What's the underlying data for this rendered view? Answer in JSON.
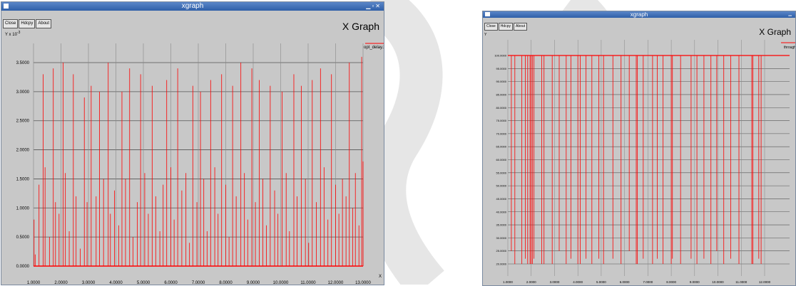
{
  "left_window": {
    "title": "xgraph",
    "buttons": [
      "Close",
      "Hdcpy",
      "About"
    ],
    "graph_title": "X Graph",
    "y_axis_label": "Y x 10",
    "y_axis_exponent": "-3",
    "legend": "opt_delay.xg",
    "x_axis_label": "X",
    "chart_data": {
      "type": "line",
      "xlim": [
        1.0,
        13.0
      ],
      "ylim": [
        0.0,
        3.5
      ],
      "y_ticks": [
        "0.0000",
        "0.5000",
        "1.0000",
        "1.5000",
        "2.0000",
        "2.5000",
        "3.0000",
        "3.5000"
      ],
      "x_ticks": [
        "1.0000",
        "2.0000",
        "3.0000",
        "4.0000",
        "5.0000",
        "6.0000",
        "7.0000",
        "8.0000",
        "9.0000",
        "10.0000",
        "11.0000",
        "12.0000",
        "13.0000"
      ],
      "series": [
        {
          "name": "opt_delay.xg",
          "color": "#ff0000",
          "spikes": [
            [
              1.02,
              0.8
            ],
            [
              1.06,
              0.2
            ],
            [
              1.2,
              1.4
            ],
            [
              1.35,
              3.3
            ],
            [
              1.42,
              1.7
            ],
            [
              1.58,
              0.5
            ],
            [
              1.72,
              3.4
            ],
            [
              1.8,
              1.1
            ],
            [
              1.93,
              0.9
            ],
            [
              2.08,
              3.5
            ],
            [
              2.16,
              1.6
            ],
            [
              2.3,
              0.6
            ],
            [
              2.45,
              3.3
            ],
            [
              2.55,
              1.2
            ],
            [
              2.7,
              0.3
            ],
            [
              2.85,
              2.9
            ],
            [
              2.95,
              1.1
            ],
            [
              3.1,
              3.1
            ],
            [
              3.28,
              1.2
            ],
            [
              3.4,
              3.0
            ],
            [
              3.55,
              1.5
            ],
            [
              3.72,
              3.5
            ],
            [
              3.8,
              0.9
            ],
            [
              3.95,
              1.3
            ],
            [
              4.1,
              0.7
            ],
            [
              4.22,
              3.0
            ],
            [
              4.35,
              1.5
            ],
            [
              4.5,
              3.4
            ],
            [
              4.62,
              0.5
            ],
            [
              4.78,
              1.1
            ],
            [
              4.9,
              3.3
            ],
            [
              5.05,
              1.6
            ],
            [
              5.18,
              0.9
            ],
            [
              5.32,
              3.1
            ],
            [
              5.45,
              1.2
            ],
            [
              5.6,
              0.6
            ],
            [
              5.72,
              1.4
            ],
            [
              5.85,
              3.2
            ],
            [
              6.0,
              1.7
            ],
            [
              6.12,
              0.8
            ],
            [
              6.25,
              3.4
            ],
            [
              6.4,
              1.3
            ],
            [
              6.55,
              1.6
            ],
            [
              6.68,
              0.4
            ],
            [
              6.8,
              3.1
            ],
            [
              6.95,
              1.1
            ],
            [
              7.08,
              3.0
            ],
            [
              7.2,
              1.5
            ],
            [
              7.32,
              0.6
            ],
            [
              7.45,
              3.2
            ],
            [
              7.6,
              1.7
            ],
            [
              7.72,
              0.9
            ],
            [
              7.85,
              3.3
            ],
            [
              8.0,
              1.4
            ],
            [
              8.12,
              0.5
            ],
            [
              8.25,
              3.1
            ],
            [
              8.38,
              1.2
            ],
            [
              8.55,
              3.5
            ],
            [
              8.68,
              1.6
            ],
            [
              8.8,
              0.8
            ],
            [
              8.95,
              3.4
            ],
            [
              9.08,
              1.1
            ],
            [
              9.22,
              3.2
            ],
            [
              9.35,
              1.5
            ],
            [
              9.48,
              0.7
            ],
            [
              9.62,
              3.1
            ],
            [
              9.78,
              1.3
            ],
            [
              9.9,
              0.9
            ],
            [
              10.05,
              3.0
            ],
            [
              10.2,
              1.6
            ],
            [
              10.32,
              0.6
            ],
            [
              10.48,
              3.3
            ],
            [
              10.6,
              1.2
            ],
            [
              10.75,
              3.1
            ],
            [
              10.9,
              1.5
            ],
            [
              11.02,
              0.4
            ],
            [
              11.15,
              3.2
            ],
            [
              11.3,
              1.1
            ],
            [
              11.45,
              3.4
            ],
            [
              11.58,
              1.7
            ],
            [
              11.72,
              0.8
            ],
            [
              11.85,
              3.3
            ],
            [
              12.0,
              1.4
            ],
            [
              12.12,
              0.9
            ],
            [
              12.25,
              1.5
            ],
            [
              12.38,
              1.2
            ],
            [
              12.5,
              3.5
            ],
            [
              12.62,
              1.0
            ],
            [
              12.72,
              1.6
            ],
            [
              12.85,
              0.7
            ],
            [
              12.95,
              3.6
            ],
            [
              13.0,
              1.8
            ]
          ]
        }
      ]
    }
  },
  "right_window": {
    "title": "xgraph",
    "buttons": [
      "Close",
      "Hdcpy",
      "About"
    ],
    "graph_title": "X Graph",
    "y_axis_label": "Y",
    "legend": "throughput",
    "chart_data": {
      "type": "line",
      "xlim": [
        1.0,
        12.0
      ],
      "ylim": [
        20.0,
        100.0
      ],
      "y_ticks": [
        "20.0000",
        "25.0000",
        "30.0000",
        "35.0000",
        "40.0000",
        "45.0000",
        "50.0000",
        "55.0000",
        "60.0000",
        "65.0000",
        "70.0000",
        "75.0000",
        "80.0000",
        "85.0000",
        "90.0000",
        "95.0000",
        "100.0000"
      ],
      "x_ticks": [
        "1.0000",
        "2.0000",
        "3.0000",
        "4.0000",
        "5.0000",
        "6.0000",
        "7.0000",
        "8.0000",
        "9.0000",
        "10.0000",
        "11.0000",
        "12.0000"
      ],
      "series": [
        {
          "name": "throughput",
          "color": "#ff0000",
          "baseline": 100.0,
          "dips": [
            [
              1.15,
              25
            ],
            [
              1.3,
              20
            ],
            [
              1.6,
              20
            ],
            [
              1.75,
              22
            ],
            [
              1.85,
              20
            ],
            [
              1.95,
              20
            ],
            [
              2.0,
              20
            ],
            [
              2.05,
              20
            ],
            [
              2.12,
              22
            ],
            [
              2.45,
              20
            ],
            [
              2.55,
              20
            ],
            [
              2.9,
              20
            ],
            [
              3.2,
              25
            ],
            [
              3.5,
              20
            ],
            [
              3.7,
              22
            ],
            [
              4.0,
              20
            ],
            [
              4.1,
              20
            ],
            [
              4.35,
              22
            ],
            [
              4.6,
              20
            ],
            [
              4.9,
              22
            ],
            [
              5.1,
              20
            ],
            [
              5.5,
              22
            ],
            [
              5.85,
              20
            ],
            [
              6.2,
              25
            ],
            [
              6.5,
              20
            ],
            [
              6.55,
              20
            ],
            [
              6.8,
              22
            ],
            [
              7.2,
              20
            ],
            [
              7.4,
              22
            ],
            [
              7.65,
              20
            ],
            [
              8.0,
              20
            ],
            [
              8.05,
              22
            ],
            [
              8.4,
              20
            ],
            [
              8.85,
              22
            ],
            [
              9.1,
              20
            ],
            [
              9.4,
              22
            ],
            [
              9.7,
              20
            ],
            [
              9.95,
              25
            ],
            [
              10.25,
              20
            ],
            [
              10.55,
              22
            ],
            [
              10.9,
              20
            ],
            [
              11.45,
              20
            ],
            [
              11.5,
              20
            ],
            [
              11.75,
              22
            ],
            [
              11.85,
              20
            ]
          ]
        }
      ]
    }
  }
}
